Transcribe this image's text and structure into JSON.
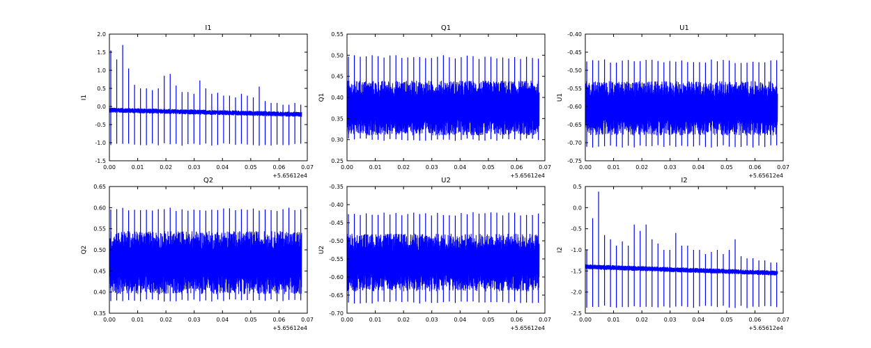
{
  "colors": {
    "line": "#0000ff",
    "axes": "#000000",
    "background": "#ffffff"
  },
  "chart_data": [
    {
      "type": "line",
      "title": "I1",
      "ylabel": "I1",
      "xlabel": "",
      "xlim": [
        0.0,
        0.07
      ],
      "ylim": [
        -1.5,
        2.0
      ],
      "xticks": [
        "0.00",
        "0.01",
        "0.02",
        "0.03",
        "0.04",
        "0.05",
        "0.06",
        "0.07"
      ],
      "yticks": [
        "-1.5",
        "-1.0",
        "-0.5",
        "0.0",
        "0.5",
        "1.0",
        "1.5",
        "2.0"
      ],
      "offset_label": "+5.65612e4",
      "x_data_range": [
        0.0,
        0.068
      ],
      "baseline": {
        "start": -0.1,
        "end": -0.22
      },
      "noise_band": 0.07,
      "spike_interval": 0.0021,
      "up_spikes": [
        [
          0.001,
          1.55
        ],
        [
          0.002,
          1.3
        ],
        [
          0.004,
          1.75
        ],
        [
          0.005,
          1.7
        ],
        [
          0.007,
          1.05
        ],
        [
          0.009,
          0.6
        ],
        [
          0.01,
          0.5
        ],
        [
          0.012,
          0.52
        ],
        [
          0.014,
          0.5
        ],
        [
          0.016,
          0.45
        ],
        [
          0.018,
          0.5
        ],
        [
          0.02,
          0.85
        ],
        [
          0.021,
          0.9
        ],
        [
          0.023,
          0.58
        ],
        [
          0.025,
          0.4
        ],
        [
          0.027,
          0.4
        ],
        [
          0.029,
          0.35
        ],
        [
          0.031,
          0.7
        ],
        [
          0.032,
          0.72
        ],
        [
          0.034,
          0.5
        ],
        [
          0.036,
          0.35
        ],
        [
          0.038,
          0.38
        ],
        [
          0.04,
          0.3
        ],
        [
          0.042,
          0.3
        ],
        [
          0.044,
          0.25
        ],
        [
          0.046,
          0.35
        ],
        [
          0.048,
          0.3
        ],
        [
          0.05,
          0.25
        ],
        [
          0.052,
          0.38
        ],
        [
          0.053,
          0.55
        ],
        [
          0.055,
          0.15
        ],
        [
          0.057,
          0.1
        ],
        [
          0.059,
          0.1
        ],
        [
          0.061,
          0.05
        ],
        [
          0.063,
          0.05
        ],
        [
          0.065,
          0.1
        ],
        [
          0.067,
          0.05
        ]
      ],
      "down_spike_level": -1.05
    },
    {
      "type": "line",
      "title": "Q1",
      "ylabel": "Q1",
      "xlabel": "",
      "xlim": [
        0.0,
        0.07
      ],
      "ylim": [
        0.25,
        0.55
      ],
      "xticks": [
        "0.00",
        "0.01",
        "0.02",
        "0.03",
        "0.04",
        "0.05",
        "0.06",
        "0.07"
      ],
      "yticks": [
        "0.25",
        "0.30",
        "0.35",
        "0.40",
        "0.45",
        "0.50",
        "0.55"
      ],
      "offset_label": "+5.65612e4",
      "x_data_range": [
        0.0,
        0.068
      ],
      "baseline": {
        "start": 0.375,
        "end": 0.375
      },
      "noise_band": 0.065,
      "spike_interval": 0.0021,
      "up_spike_level": 0.5,
      "down_spike_level": 0.3
    },
    {
      "type": "line",
      "title": "U1",
      "ylabel": "U1",
      "xlabel": "",
      "xlim": [
        0.0,
        0.07
      ],
      "ylim": [
        -0.75,
        -0.4
      ],
      "xticks": [
        "0.00",
        "0.01",
        "0.02",
        "0.03",
        "0.04",
        "0.05",
        "0.06",
        "0.07"
      ],
      "yticks": [
        "-0.75",
        "-0.70",
        "-0.65",
        "-0.60",
        "-0.55",
        "-0.50",
        "-0.45",
        "-0.40"
      ],
      "offset_label": "+5.65612e4",
      "x_data_range": [
        0.0,
        0.068
      ],
      "baseline": {
        "start": -0.605,
        "end": -0.605
      },
      "noise_band": 0.075,
      "spike_interval": 0.0021,
      "up_spike_level": -0.47,
      "down_spike_level": -0.71
    },
    {
      "type": "line",
      "title": "Q2",
      "ylabel": "Q2",
      "xlabel": "",
      "xlim": [
        0.0,
        0.07
      ],
      "ylim": [
        0.35,
        0.65
      ],
      "xticks": [
        "0.00",
        "0.01",
        "0.02",
        "0.03",
        "0.04",
        "0.05",
        "0.06",
        "0.07"
      ],
      "yticks": [
        "0.35",
        "0.40",
        "0.45",
        "0.50",
        "0.55",
        "0.60",
        "0.65"
      ],
      "offset_label": "+5.65612e4",
      "x_data_range": [
        0.0,
        0.068
      ],
      "baseline": {
        "start": 0.47,
        "end": 0.47
      },
      "noise_band": 0.075,
      "spike_interval": 0.0021,
      "up_spike_level": 0.6,
      "down_spike_level": 0.38
    },
    {
      "type": "line",
      "title": "U2",
      "ylabel": "U2",
      "xlabel": "",
      "xlim": [
        0.0,
        0.07
      ],
      "ylim": [
        -0.7,
        -0.35
      ],
      "xticks": [
        "0.00",
        "0.01",
        "0.02",
        "0.03",
        "0.04",
        "0.05",
        "0.06",
        "0.07"
      ],
      "yticks": [
        "-0.70",
        "-0.65",
        "-0.60",
        "-0.55",
        "-0.50",
        "-0.45",
        "-0.40",
        "-0.35"
      ],
      "offset_label": "+5.65612e4",
      "x_data_range": [
        0.0,
        0.068
      ],
      "baseline": {
        "start": -0.56,
        "end": -0.56
      },
      "noise_band": 0.08,
      "spike_interval": 0.0021,
      "up_spike_level": -0.42,
      "down_spike_level": -0.67
    },
    {
      "type": "line",
      "title": "I2",
      "ylabel": "I2",
      "xlabel": "",
      "xlim": [
        0.0,
        0.07
      ],
      "ylim": [
        -2.5,
        0.5
      ],
      "xticks": [
        "0.00",
        "0.01",
        "0.02",
        "0.03",
        "0.04",
        "0.05",
        "0.06",
        "0.07"
      ],
      "yticks": [
        "-2.5",
        "-2.0",
        "-1.5",
        "-1.0",
        "-0.5",
        "0.0",
        "0.5"
      ],
      "offset_label": "+5.65612e4",
      "x_data_range": [
        0.0,
        0.068
      ],
      "baseline": {
        "start": -1.4,
        "end": -1.55
      },
      "noise_band": 0.06,
      "spike_interval": 0.0021,
      "up_spikes": [
        [
          0.001,
          -1.0
        ],
        [
          0.002,
          -0.25
        ],
        [
          0.004,
          0.42
        ],
        [
          0.005,
          0.38
        ],
        [
          0.007,
          -0.65
        ],
        [
          0.009,
          -0.75
        ],
        [
          0.01,
          -0.9
        ],
        [
          0.012,
          -0.8
        ],
        [
          0.014,
          -0.8
        ],
        [
          0.016,
          -0.9
        ],
        [
          0.018,
          -0.4
        ],
        [
          0.02,
          -0.55
        ],
        [
          0.021,
          -0.4
        ],
        [
          0.023,
          -0.75
        ],
        [
          0.025,
          -0.85
        ],
        [
          0.027,
          -1.0
        ],
        [
          0.029,
          -1.0
        ],
        [
          0.031,
          -0.7
        ],
        [
          0.032,
          -0.6
        ],
        [
          0.034,
          -0.9
        ],
        [
          0.036,
          -0.9
        ],
        [
          0.038,
          -1.0
        ],
        [
          0.04,
          -1.0
        ],
        [
          0.042,
          -1.1
        ],
        [
          0.044,
          -1.05
        ],
        [
          0.046,
          -1.0
        ],
        [
          0.048,
          -1.1
        ],
        [
          0.05,
          -1.0
        ],
        [
          0.052,
          -0.8
        ],
        [
          0.053,
          -0.75
        ],
        [
          0.055,
          -1.15
        ],
        [
          0.057,
          -1.2
        ],
        [
          0.059,
          -1.2
        ],
        [
          0.061,
          -1.25
        ],
        [
          0.063,
          -1.25
        ],
        [
          0.065,
          -1.3
        ],
        [
          0.067,
          -1.3
        ]
      ],
      "down_spike_level": -2.35
    }
  ]
}
